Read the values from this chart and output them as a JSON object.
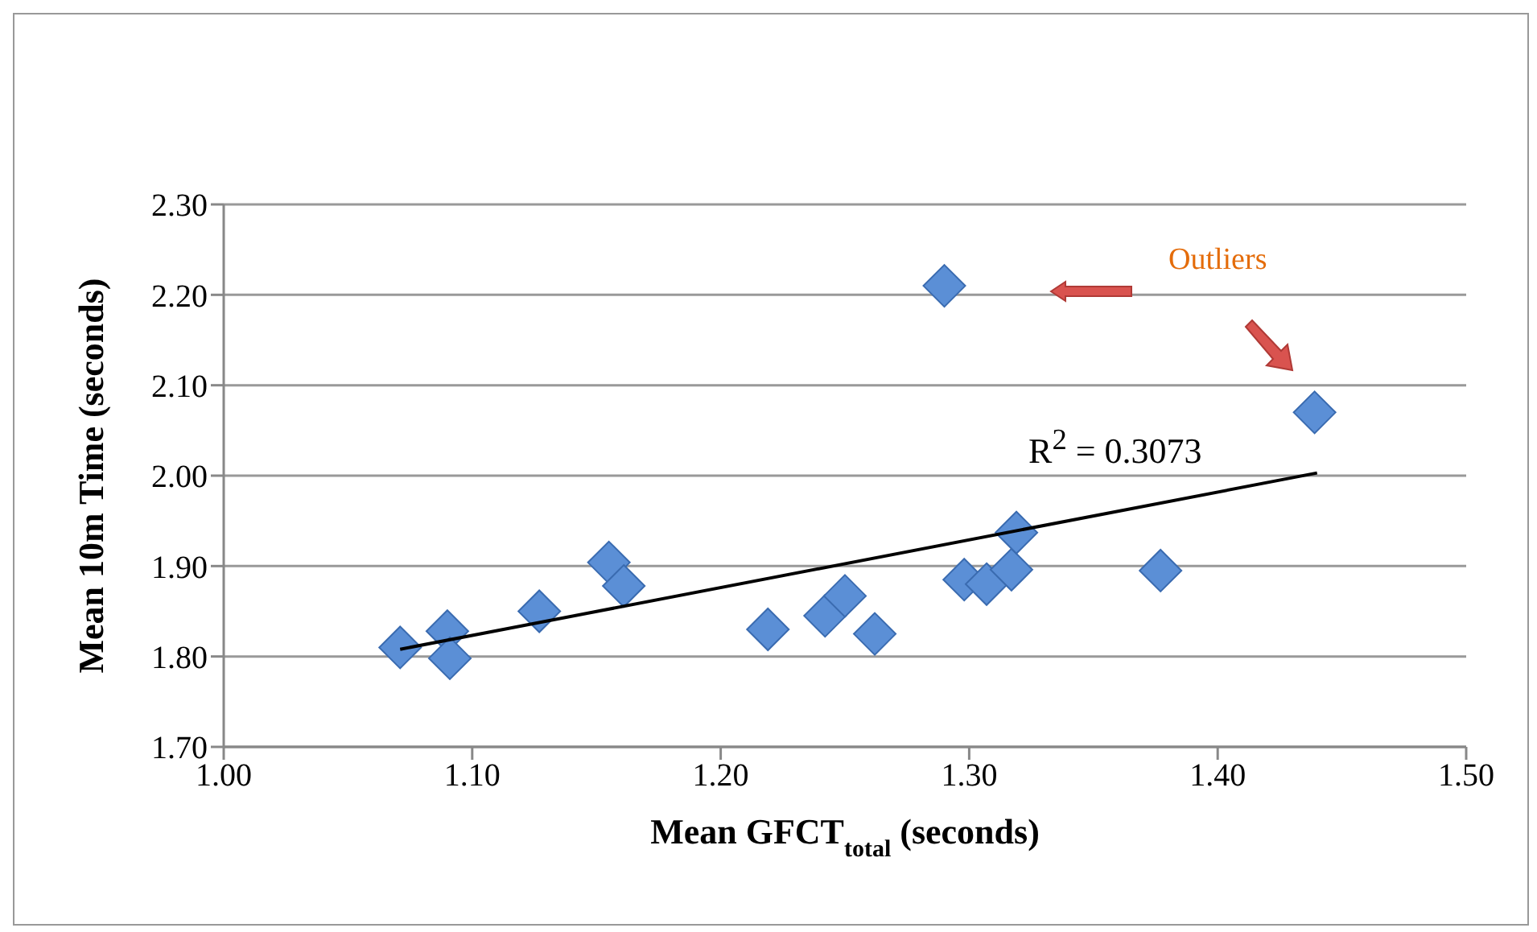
{
  "chart_data": {
    "type": "scatter",
    "xlabel": "Mean GFCT$_{total}$ (seconds)",
    "ylabel": "Mean 10m Time (seconds)",
    "annotations": [
      "Outliers",
      "R$^{2}$ = 0.3073"
    ],
    "series": [
      {
        "color": "#5b8fd6",
        "marker": "diamond",
        "x": [
          1.071,
          1.09,
          1.091,
          1.127,
          1.155,
          1.161,
          1.219,
          1.242,
          1.25,
          1.262,
          1.29,
          1.298,
          1.307,
          1.317,
          1.319,
          1.377,
          1.439
        ],
        "values": [
          1.81,
          1.828,
          1.798,
          1.85,
          1.904,
          1.878,
          1.83,
          1.845,
          1.867,
          1.825,
          2.21,
          1.885,
          1.88,
          1.896,
          1.937,
          1.895,
          2.07
        ]
      },
      {
        "type": "line",
        "color": "#000000",
        "marker": "none",
        "x": [
          1.071,
          1.44
        ],
        "values": [
          1.808,
          2.003
        ]
      }
    ],
    "xlim": [
      1.0,
      1.5
    ],
    "xticks": [
      {
        "value": 1.0,
        "label": "1.00"
      },
      {
        "value": 1.1,
        "label": "1.10"
      },
      {
        "value": 1.2,
        "label": "1.20"
      },
      {
        "value": 1.3,
        "label": "1.30"
      },
      {
        "value": 1.4,
        "label": "1.40"
      },
      {
        "value": 1.5,
        "label": "1.50"
      }
    ],
    "ylim": [
      1.7,
      2.3
    ],
    "yticks": [
      {
        "value": 1.7,
        "label": "1.70"
      },
      {
        "value": 1.8,
        "label": "1.80"
      },
      {
        "value": 1.9,
        "label": "1.90"
      },
      {
        "value": 2.0,
        "label": "2.00"
      },
      {
        "value": 2.1,
        "label": "2.10"
      },
      {
        "value": 2.2,
        "label": "2.20"
      },
      {
        "value": 2.3,
        "label": "2.30"
      }
    ],
    "grid": "y"
  }
}
